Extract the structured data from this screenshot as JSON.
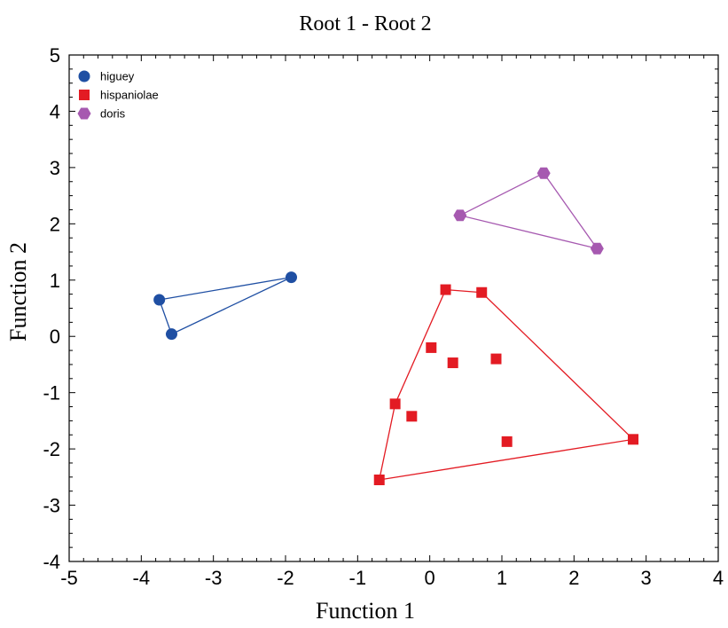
{
  "chart_data": {
    "type": "scatter",
    "title": "Root 1 - Root 2",
    "xlabel": "Function 1",
    "ylabel": "Function 2",
    "xlim": [
      -5,
      4
    ],
    "ylim": [
      -4,
      5
    ],
    "xticks": [
      -5,
      -4,
      -3,
      -2,
      -1,
      0,
      1,
      2,
      3,
      4
    ],
    "yticks": [
      -4,
      -3,
      -2,
      -1,
      0,
      1,
      2,
      3,
      4,
      5
    ],
    "grid": false,
    "legend_position": "top-left",
    "series": [
      {
        "name": "higuey",
        "marker": "circle",
        "color": "#1f4fa3",
        "points": [
          {
            "x": -3.75,
            "y": 0.65
          },
          {
            "x": -3.58,
            "y": 0.04
          },
          {
            "x": -1.92,
            "y": 1.05
          }
        ],
        "hull": [
          {
            "x": -3.75,
            "y": 0.65
          },
          {
            "x": -1.92,
            "y": 1.05
          },
          {
            "x": -3.58,
            "y": 0.04
          }
        ]
      },
      {
        "name": "hispaniolae",
        "marker": "square",
        "color": "#e31b23",
        "points": [
          {
            "x": 0.22,
            "y": 0.83
          },
          {
            "x": 0.72,
            "y": 0.78
          },
          {
            "x": 0.02,
            "y": -0.2
          },
          {
            "x": 0.32,
            "y": -0.47
          },
          {
            "x": 0.92,
            "y": -0.4
          },
          {
            "x": -0.48,
            "y": -1.2
          },
          {
            "x": -0.25,
            "y": -1.42
          },
          {
            "x": 1.07,
            "y": -1.87
          },
          {
            "x": 2.82,
            "y": -1.83
          },
          {
            "x": -0.7,
            "y": -2.55
          }
        ],
        "hull": [
          {
            "x": 0.22,
            "y": 0.83
          },
          {
            "x": 0.72,
            "y": 0.78
          },
          {
            "x": 2.82,
            "y": -1.83
          },
          {
            "x": -0.7,
            "y": -2.55
          },
          {
            "x": -0.48,
            "y": -1.2
          }
        ]
      },
      {
        "name": "doris",
        "marker": "hexagon",
        "color": "#a659b0",
        "points": [
          {
            "x": 1.58,
            "y": 2.9
          },
          {
            "x": 0.42,
            "y": 2.15
          },
          {
            "x": 2.32,
            "y": 1.56
          }
        ],
        "hull": [
          {
            "x": 0.42,
            "y": 2.15
          },
          {
            "x": 1.58,
            "y": 2.9
          },
          {
            "x": 2.32,
            "y": 1.56
          }
        ]
      }
    ]
  }
}
